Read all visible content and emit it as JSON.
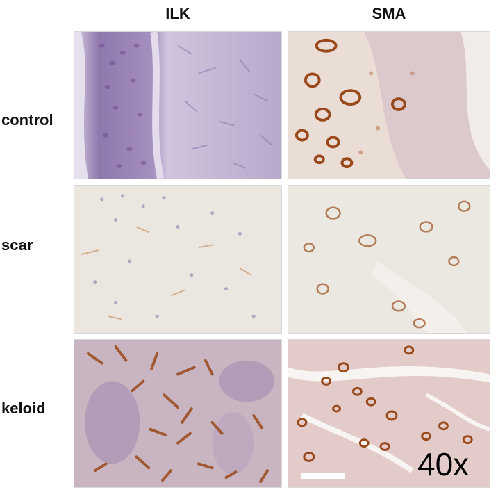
{
  "columns": [
    {
      "label": "ILK"
    },
    {
      "label": "SMA"
    }
  ],
  "rows": [
    {
      "label": "control"
    },
    {
      "label": "scar"
    },
    {
      "label": "keloid"
    }
  ],
  "magnification": "40x",
  "colors": {
    "hematoxylin": "#9a82b5",
    "dab_brown": "#9a4a1a",
    "background_light": "#ece8e2"
  }
}
